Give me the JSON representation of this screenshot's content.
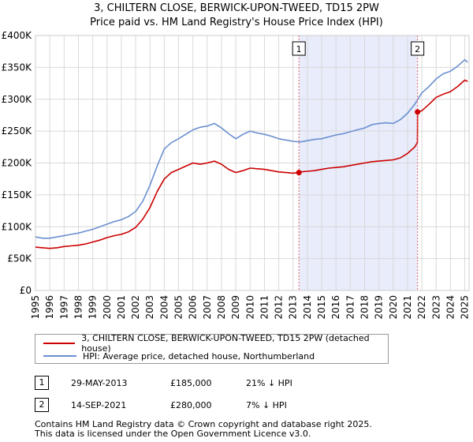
{
  "chart_data": {
    "type": "line",
    "title": "3, CHILTERN CLOSE, BERWICK-UPON-TWEED, TD15 2PW",
    "subtitle": "Price paid vs. HM Land Registry's House Price Index (HPI)",
    "xlabel": "",
    "ylabel": "",
    "xlim": [
      1995,
      2025.3
    ],
    "ylim": [
      0,
      400000
    ],
    "y_ticks": [
      0,
      50000,
      100000,
      150000,
      200000,
      250000,
      300000,
      350000,
      400000
    ],
    "y_tick_labels": [
      "£0",
      "£50K",
      "£100K",
      "£150K",
      "£200K",
      "£250K",
      "£300K",
      "£350K",
      "£400K"
    ],
    "x_ticks": [
      "1995",
      "1996",
      "1997",
      "1998",
      "1999",
      "2000",
      "2001",
      "2002",
      "2003",
      "2004",
      "2005",
      "2006",
      "2007",
      "2008",
      "2009",
      "2010",
      "2011",
      "2012",
      "2013",
      "2014",
      "2015",
      "2016",
      "2017",
      "2018",
      "2019",
      "2020",
      "2021",
      "2022",
      "2023",
      "2024",
      "2025"
    ],
    "grid": true,
    "shaded_region": {
      "from": 2013.41,
      "to": 2021.7,
      "color": "#e8ecfb"
    },
    "series": [
      {
        "name": "3, CHILTERN CLOSE, BERWICK-UPON-TWEED, TD15 2PW (detached house)",
        "color": "#cc0000",
        "x": [
          1995.0,
          1995.5,
          1996.0,
          1996.5,
          1997.0,
          1997.5,
          1998.0,
          1998.5,
          1999.0,
          1999.5,
          2000.0,
          2000.5,
          2001.0,
          2001.5,
          2002.0,
          2002.5,
          2003.0,
          2003.5,
          2004.0,
          2004.5,
          2005.0,
          2005.5,
          2006.0,
          2006.5,
          2007.0,
          2007.5,
          2008.0,
          2008.5,
          2009.0,
          2009.5,
          2010.0,
          2010.5,
          2011.0,
          2011.5,
          2012.0,
          2012.5,
          2013.0,
          2013.41,
          2013.5,
          2014.0,
          2014.5,
          2015.0,
          2015.5,
          2016.0,
          2016.5,
          2017.0,
          2017.5,
          2018.0,
          2018.5,
          2019.0,
          2019.5,
          2020.0,
          2020.5,
          2021.0,
          2021.5,
          2021.69,
          2021.7,
          2022.0,
          2022.5,
          2023.0,
          2023.5,
          2024.0,
          2024.5,
          2025.0,
          2025.2
        ],
        "values": [
          68000,
          67000,
          66000,
          67000,
          69000,
          70000,
          71000,
          73000,
          76000,
          79000,
          83000,
          86000,
          88000,
          92000,
          99000,
          112000,
          130000,
          155000,
          175000,
          185000,
          190000,
          195000,
          200000,
          198000,
          200000,
          203000,
          198000,
          190000,
          185000,
          188000,
          192000,
          191000,
          190000,
          188000,
          186000,
          185000,
          184000,
          185000,
          186000,
          187000,
          188000,
          190000,
          192000,
          193000,
          194000,
          196000,
          198000,
          200000,
          202000,
          203000,
          204000,
          205000,
          208000,
          215000,
          225000,
          232000,
          280000,
          282000,
          292000,
          303000,
          308000,
          312000,
          320000,
          330000,
          328000
        ]
      },
      {
        "name": "HPI: Average price, detached house, Northumberland",
        "color": "#6a8fcf",
        "x": [
          1995.0,
          1995.5,
          1996.0,
          1996.5,
          1997.0,
          1997.5,
          1998.0,
          1998.5,
          1999.0,
          1999.5,
          2000.0,
          2000.5,
          2001.0,
          2001.5,
          2002.0,
          2002.5,
          2003.0,
          2003.5,
          2004.0,
          2004.5,
          2005.0,
          2005.5,
          2006.0,
          2006.5,
          2007.0,
          2007.5,
          2008.0,
          2008.5,
          2009.0,
          2009.5,
          2010.0,
          2010.5,
          2011.0,
          2011.5,
          2012.0,
          2012.5,
          2013.0,
          2013.5,
          2014.0,
          2014.5,
          2015.0,
          2015.5,
          2016.0,
          2016.5,
          2017.0,
          2017.5,
          2018.0,
          2018.5,
          2019.0,
          2019.5,
          2020.0,
          2020.5,
          2021.0,
          2021.5,
          2022.0,
          2022.5,
          2023.0,
          2023.5,
          2024.0,
          2024.5,
          2025.0,
          2025.2
        ],
        "values": [
          84000,
          82000,
          82000,
          84000,
          86000,
          88000,
          90000,
          93000,
          96000,
          100000,
          104000,
          108000,
          111000,
          116000,
          124000,
          140000,
          165000,
          195000,
          222000,
          232000,
          238000,
          245000,
          252000,
          256000,
          258000,
          262000,
          255000,
          246000,
          238000,
          245000,
          250000,
          247000,
          245000,
          242000,
          238000,
          236000,
          234000,
          233000,
          235000,
          237000,
          238000,
          241000,
          244000,
          246000,
          249000,
          252000,
          255000,
          260000,
          262000,
          263000,
          262000,
          268000,
          278000,
          292000,
          310000,
          320000,
          332000,
          340000,
          344000,
          352000,
          362000,
          358000
        ]
      }
    ],
    "markers": [
      {
        "label": "1",
        "x": 2013.41,
        "y": 185000
      },
      {
        "label": "2",
        "x": 2021.7,
        "y": 280000
      }
    ]
  },
  "legend": {
    "items": [
      {
        "label": "3, CHILTERN CLOSE, BERWICK-UPON-TWEED, TD15 2PW (detached house)",
        "color": "#cc0000"
      },
      {
        "label": "HPI: Average price, detached house, Northumberland",
        "color": "#6a8fcf"
      }
    ]
  },
  "sales": [
    {
      "num": "1",
      "date": "29-MAY-2013",
      "price": "£185,000",
      "hpi": "21% ↓ HPI"
    },
    {
      "num": "2",
      "date": "14-SEP-2021",
      "price": "£280,000",
      "hpi": "7% ↓ HPI"
    }
  ],
  "footer": {
    "line1": "Contains HM Land Registry data © Crown copyright and database right 2025.",
    "line2": "This data is licensed under the Open Government Licence v3.0."
  }
}
